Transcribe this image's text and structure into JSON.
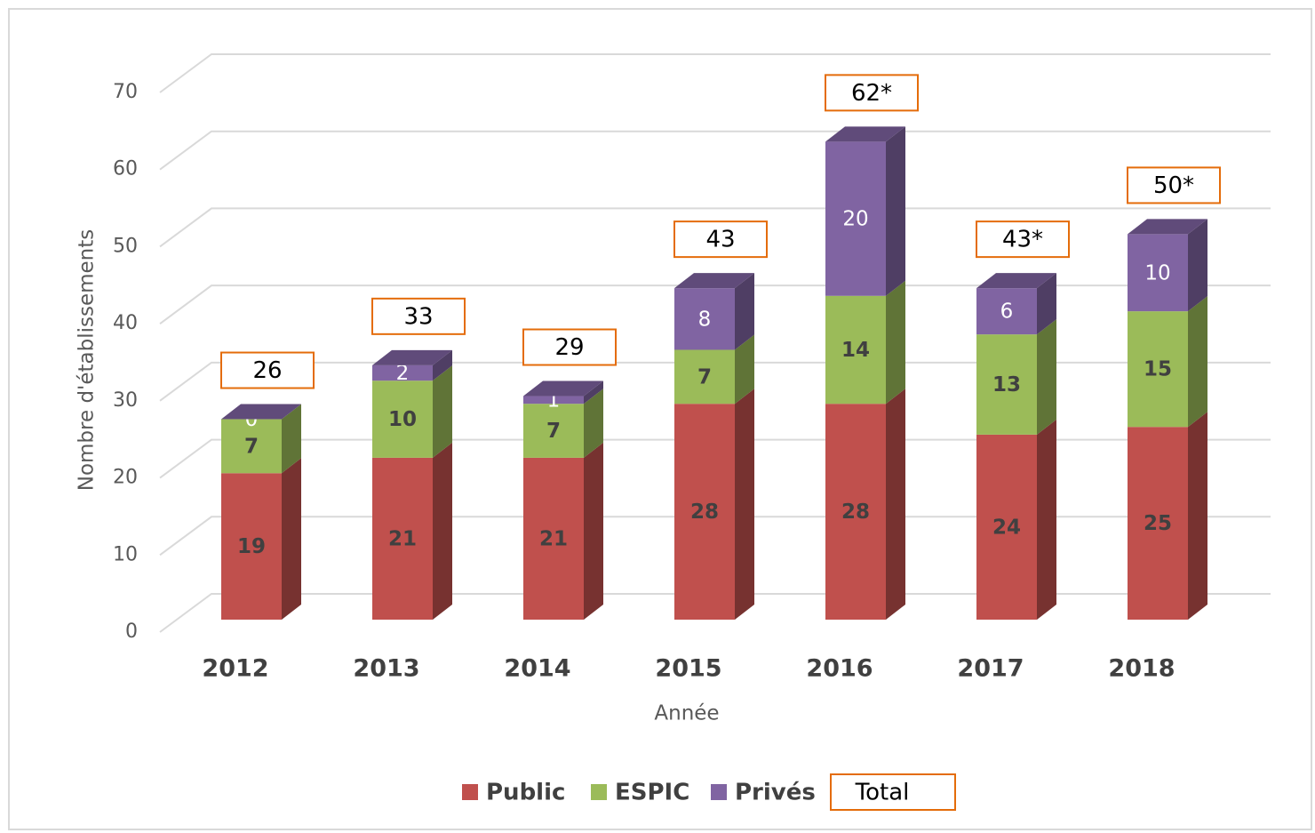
{
  "chart_data": {
    "type": "bar3d_stacked",
    "x_label": "Année",
    "y_label": "Nombre d'établissements",
    "categories": [
      "2012",
      "2013",
      "2014",
      "2015",
      "2016",
      "2017",
      "2018"
    ],
    "series": [
      {
        "name": "Public",
        "color": "#c0504d",
        "values": [
          19,
          21,
          21,
          28,
          28,
          24,
          25
        ]
      },
      {
        "name": "ESPIC",
        "color": "#9bbb59",
        "values": [
          7,
          10,
          7,
          7,
          14,
          13,
          15
        ]
      },
      {
        "name": "Privés",
        "color": "#8064a2",
        "values": [
          0,
          2,
          1,
          8,
          20,
          6,
          10
        ]
      }
    ],
    "total": {
      "name": "Total",
      "color": "#e46c0a",
      "values": [
        26,
        33,
        29,
        43,
        62,
        43,
        50
      ],
      "value_labels": [
        "26",
        "33",
        "29",
        "43",
        "62*",
        "43*",
        "50*"
      ]
    },
    "ylim": [
      0,
      70
    ],
    "yticks": [
      0,
      10,
      20,
      30,
      40,
      50,
      60,
      70
    ],
    "grid": true,
    "legend": "bottom"
  }
}
